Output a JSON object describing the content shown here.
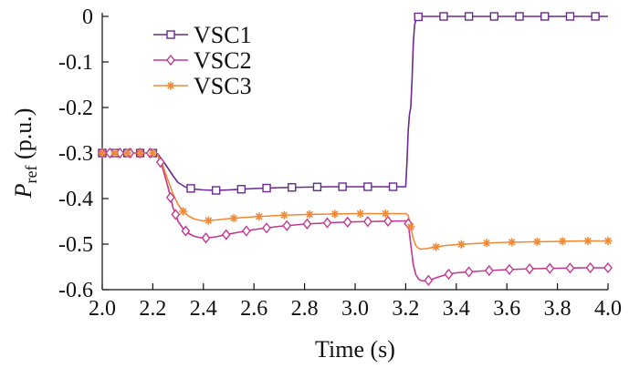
{
  "chart_data": {
    "type": "line",
    "xlabel": "Time (s)",
    "ylabel": {
      "main": "P",
      "sub": "ref",
      "suffix": " (p.u.)"
    },
    "xlim": [
      2.0,
      4.0
    ],
    "ylim": [
      -0.6,
      0.0
    ],
    "xticks": [
      2.0,
      2.2,
      2.4,
      2.6,
      2.8,
      3.0,
      3.2,
      3.4,
      3.6,
      3.8,
      4.0
    ],
    "xtick_labels": [
      "2.0",
      "2.2",
      "2.4",
      "2.6",
      "2.8",
      "3.0",
      "3.2",
      "3.4",
      "3.6",
      "3.8",
      "4.0"
    ],
    "yticks": [
      0,
      -0.1,
      -0.2,
      -0.3,
      -0.4,
      -0.5,
      -0.6
    ],
    "ytick_labels": [
      "0",
      "-0.1",
      "-0.2",
      "-0.3",
      "-0.4",
      "-0.5",
      "-0.6"
    ],
    "grid": false,
    "legend_position": "top-left",
    "series": [
      {
        "name": "VSC1",
        "color": "#6a2a8e",
        "marker": "square",
        "x": [
          2.0,
          2.05,
          2.1,
          2.15,
          2.2,
          2.22,
          2.25,
          2.28,
          2.3,
          2.33,
          2.36,
          2.4,
          2.45,
          2.5,
          2.6,
          2.7,
          2.8,
          2.9,
          3.0,
          3.1,
          3.2,
          3.205,
          3.21,
          3.215,
          3.22,
          3.225,
          3.23,
          3.235,
          3.24,
          3.245,
          3.25,
          3.26,
          3.3,
          3.4,
          3.5,
          3.6,
          3.7,
          3.8,
          3.9,
          4.0
        ],
        "values": [
          -0.3,
          -0.3,
          -0.3,
          -0.3,
          -0.3,
          -0.302,
          -0.325,
          -0.35,
          -0.365,
          -0.375,
          -0.379,
          -0.381,
          -0.382,
          -0.381,
          -0.378,
          -0.376,
          -0.375,
          -0.374,
          -0.374,
          -0.374,
          -0.374,
          -0.32,
          -0.25,
          -0.215,
          -0.2,
          -0.14,
          -0.06,
          -0.02,
          -0.008,
          -0.003,
          -0.001,
          0.0,
          0.0,
          0.0,
          0.0,
          0.0,
          0.0,
          0.0,
          0.0,
          0.0
        ],
        "marker_x": [
          2.0,
          2.05,
          2.1,
          2.15,
          2.2,
          2.35,
          2.45,
          2.55,
          2.65,
          2.75,
          2.85,
          2.95,
          3.05,
          3.15,
          3.25,
          3.35,
          3.45,
          3.55,
          3.65,
          3.75,
          3.85,
          3.95
        ]
      },
      {
        "name": "VSC2",
        "color": "#c2378f",
        "marker": "diamond",
        "x": [
          2.0,
          2.05,
          2.1,
          2.15,
          2.2,
          2.22,
          2.24,
          2.26,
          2.28,
          2.3,
          2.32,
          2.34,
          2.36,
          2.38,
          2.4,
          2.45,
          2.5,
          2.6,
          2.7,
          2.8,
          2.9,
          3.0,
          3.1,
          3.2,
          3.21,
          3.22,
          3.23,
          3.24,
          3.25,
          3.26,
          3.28,
          3.3,
          3.33,
          3.36,
          3.4,
          3.5,
          3.6,
          3.7,
          3.8,
          3.9,
          4.0
        ],
        "values": [
          -0.3,
          -0.3,
          -0.3,
          -0.3,
          -0.3,
          -0.305,
          -0.335,
          -0.375,
          -0.42,
          -0.45,
          -0.466,
          -0.476,
          -0.482,
          -0.485,
          -0.487,
          -0.484,
          -0.478,
          -0.468,
          -0.461,
          -0.456,
          -0.453,
          -0.451,
          -0.45,
          -0.449,
          -0.455,
          -0.5,
          -0.545,
          -0.567,
          -0.576,
          -0.58,
          -0.581,
          -0.578,
          -0.572,
          -0.567,
          -0.563,
          -0.559,
          -0.556,
          -0.554,
          -0.553,
          -0.552,
          -0.552
        ],
        "marker_x": [
          2.0,
          2.03,
          2.07,
          2.11,
          2.15,
          2.19,
          2.23,
          2.27,
          2.29,
          2.33,
          2.41,
          2.49,
          2.57,
          2.65,
          2.73,
          2.81,
          2.89,
          2.97,
          3.05,
          3.13,
          3.21,
          3.29,
          3.37,
          3.45,
          3.53,
          3.61,
          3.69,
          3.77,
          3.85,
          3.93,
          4.0
        ]
      },
      {
        "name": "VSC3",
        "color": "#f08a36",
        "marker": "asterisk",
        "x": [
          2.0,
          2.05,
          2.1,
          2.15,
          2.2,
          2.22,
          2.24,
          2.26,
          2.28,
          2.3,
          2.32,
          2.34,
          2.36,
          2.38,
          2.4,
          2.45,
          2.5,
          2.6,
          2.7,
          2.8,
          2.9,
          3.0,
          3.1,
          3.2,
          3.21,
          3.22,
          3.23,
          3.24,
          3.25,
          3.26,
          3.28,
          3.3,
          3.33,
          3.36,
          3.4,
          3.5,
          3.6,
          3.7,
          3.8,
          3.9,
          4.0
        ],
        "values": [
          -0.3,
          -0.3,
          -0.3,
          -0.3,
          -0.3,
          -0.304,
          -0.328,
          -0.36,
          -0.39,
          -0.413,
          -0.428,
          -0.438,
          -0.444,
          -0.447,
          -0.449,
          -0.447,
          -0.444,
          -0.44,
          -0.437,
          -0.435,
          -0.434,
          -0.433,
          -0.433,
          -0.433,
          -0.437,
          -0.462,
          -0.488,
          -0.503,
          -0.509,
          -0.511,
          -0.51,
          -0.508,
          -0.505,
          -0.503,
          -0.501,
          -0.498,
          -0.496,
          -0.495,
          -0.494,
          -0.493,
          -0.493
        ],
        "marker_x": [
          2.0,
          2.05,
          2.1,
          2.15,
          2.2,
          2.32,
          2.42,
          2.52,
          2.62,
          2.72,
          2.82,
          2.92,
          3.02,
          3.12,
          3.22,
          3.32,
          3.42,
          3.52,
          3.62,
          3.72,
          3.82,
          3.92,
          4.0
        ]
      }
    ]
  }
}
